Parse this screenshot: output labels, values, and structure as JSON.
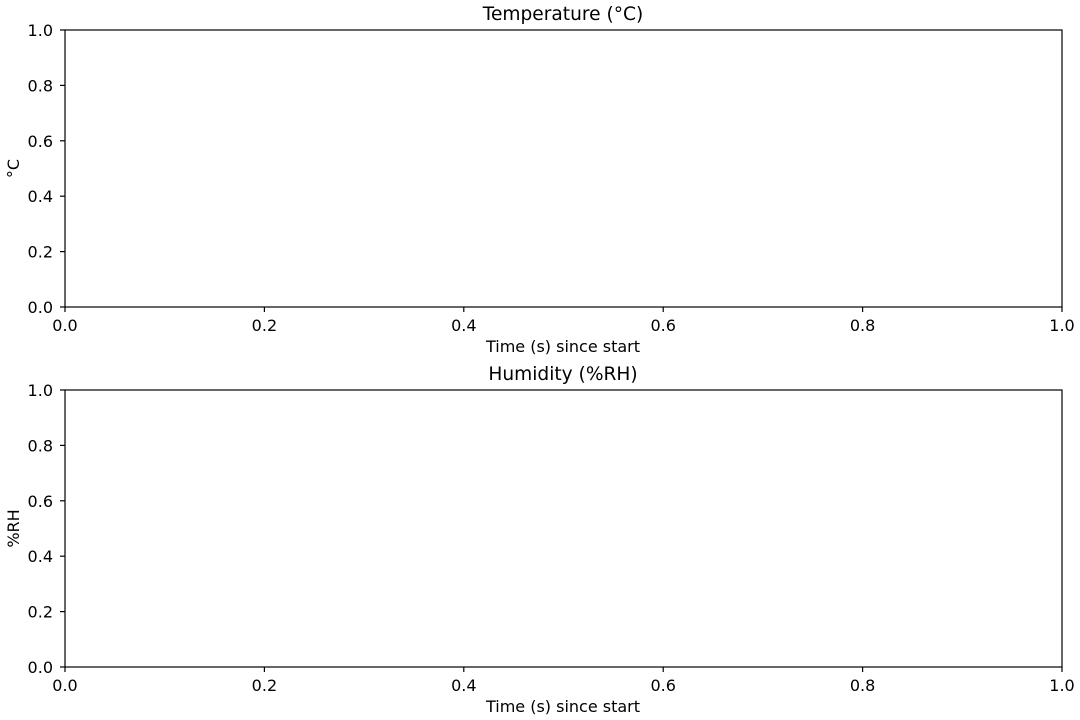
{
  "chart_data": [
    {
      "type": "line",
      "title": "Temperature (°C)",
      "xlabel": "Time (s) since start",
      "ylabel": "°C",
      "xlim": [
        0,
        1
      ],
      "ylim": [
        0,
        1
      ],
      "xticks": [
        "0.0",
        "0.2",
        "0.4",
        "0.6",
        "0.8",
        "1.0"
      ],
      "yticks": [
        "0.0",
        "0.2",
        "0.4",
        "0.6",
        "0.8",
        "1.0"
      ],
      "grid": false,
      "series": []
    },
    {
      "type": "line",
      "title": "Humidity (%RH)",
      "xlabel": "Time (s) since start",
      "ylabel": "%RH",
      "xlim": [
        0,
        1
      ],
      "ylim": [
        0,
        1
      ],
      "xticks": [
        "0.0",
        "0.2",
        "0.4",
        "0.6",
        "0.8",
        "1.0"
      ],
      "yticks": [
        "0.0",
        "0.2",
        "0.4",
        "0.6",
        "0.8",
        "1.0"
      ],
      "grid": false,
      "series": []
    }
  ]
}
